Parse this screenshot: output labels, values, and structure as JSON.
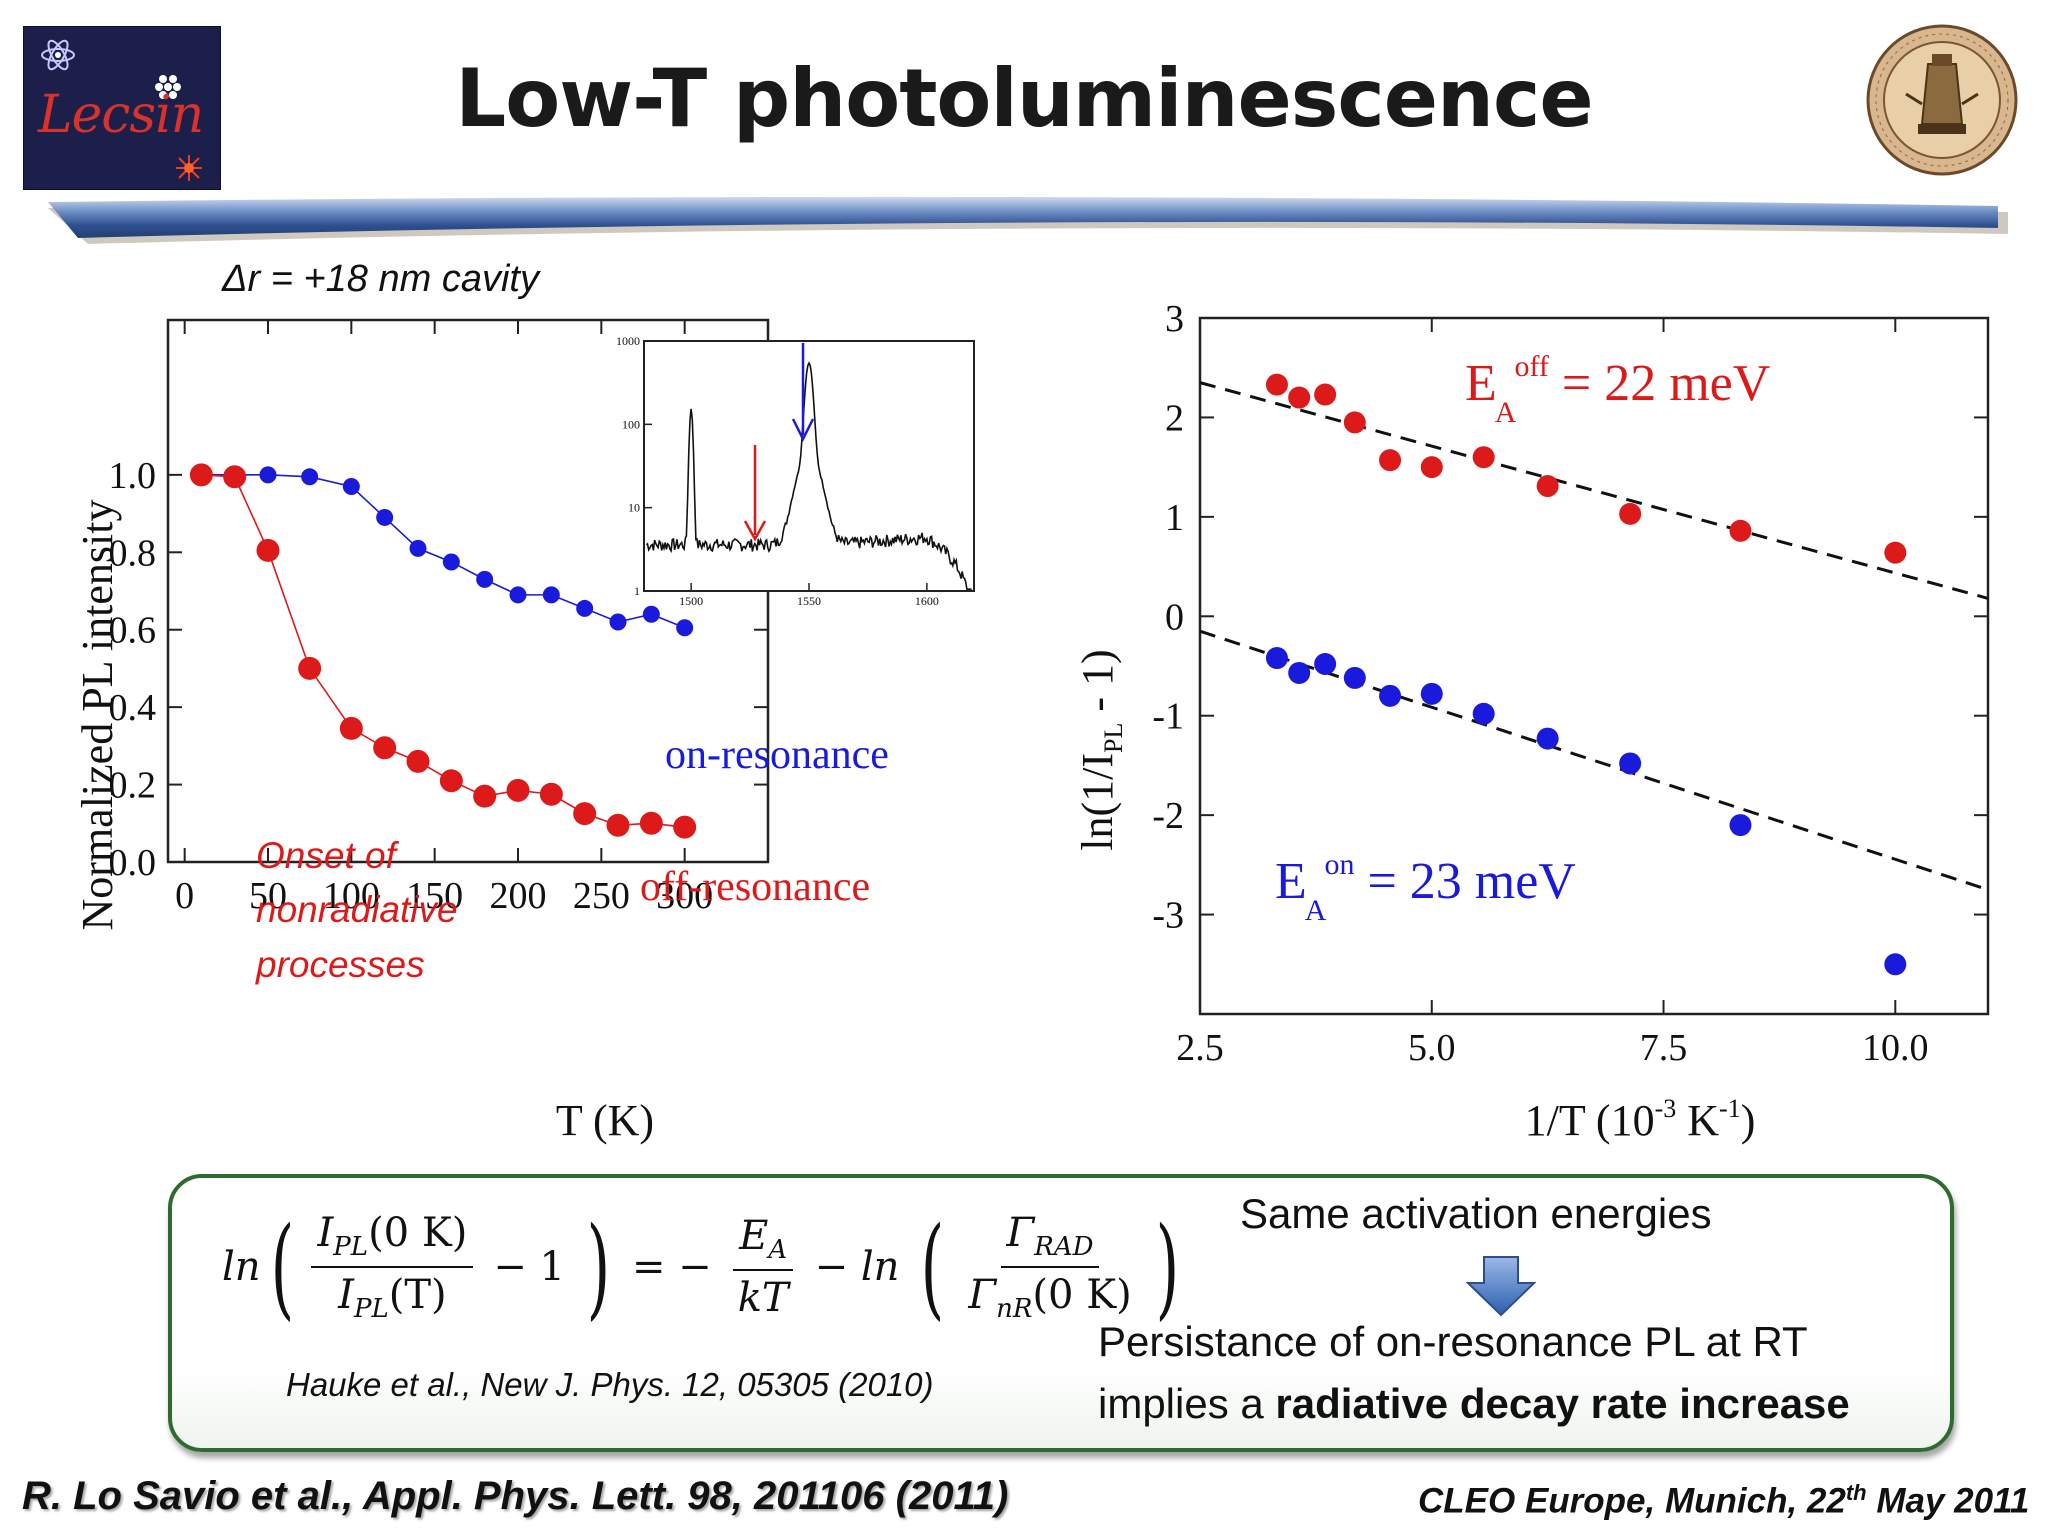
{
  "header": {
    "title": "Low-T photoluminescence",
    "logo_left_text": "Lecsin",
    "logo_right": "university-seal"
  },
  "subtitle": "Δr = +18 nm cavity",
  "left_chart": {
    "chart_data": {
      "type": "line",
      "xlabel": "T (K)",
      "ylabel": "Normalized PL intensity",
      "xlim": [
        -10,
        350
      ],
      "ylim": [
        0.0,
        1.4
      ],
      "xticks": [
        0,
        50,
        100,
        150,
        200,
        250,
        300
      ],
      "yticks": [
        0.0,
        0.2,
        0.4,
        0.6,
        0.8,
        1.0
      ],
      "xtick_labels": [
        "0",
        "50",
        "100",
        "150",
        "200",
        "250",
        "300"
      ],
      "ytick_labels": [
        "0.0",
        "0.2",
        "0.4",
        "0.6",
        "0.8",
        "1.0"
      ],
      "series": [
        {
          "name": "on-resonance",
          "color": "#1a1adc",
          "x": [
            10,
            30,
            50,
            75,
            100,
            120,
            140,
            160,
            180,
            200,
            220,
            240,
            260,
            280,
            300
          ],
          "y": [
            1.0,
            1.0,
            1.0,
            0.995,
            0.97,
            0.89,
            0.81,
            0.775,
            0.73,
            0.69,
            0.69,
            0.655,
            0.62,
            0.64,
            0.605
          ]
        },
        {
          "name": "off-resonance",
          "color": "#dd1a1a",
          "x": [
            10,
            30,
            50,
            75,
            100,
            120,
            140,
            160,
            180,
            200,
            220,
            240,
            260,
            280,
            300
          ],
          "y": [
            1.0,
            0.995,
            0.805,
            0.5,
            0.345,
            0.295,
            0.26,
            0.21,
            0.17,
            0.185,
            0.175,
            0.125,
            0.095,
            0.1,
            0.09
          ]
        }
      ],
      "annotations": [
        "Onset of",
        "nonradiative",
        "processes"
      ],
      "grid": false
    },
    "inset": {
      "chart_data": {
        "type": "line",
        "y_scale": "log",
        "xlim": [
          1480,
          1620
        ],
        "ylim": [
          1,
          1000
        ],
        "xtick_labels": [
          "1500",
          "1550",
          "1600"
        ],
        "ytick_labels": [
          "1",
          "10",
          "100",
          "1000"
        ],
        "arrow_colors": [
          "#dd1a1a",
          "#1a1adc"
        ]
      }
    }
  },
  "right_chart": {
    "chart_data": {
      "type": "scatter",
      "xlabel": "1/T (10-3 K-1)",
      "ylabel": "ln(1/IPL - 1)",
      "xlim": [
        2.5,
        11.0
      ],
      "ylim": [
        -4.0,
        3.0
      ],
      "xticks": [
        2.5,
        5.0,
        7.5,
        10.0
      ],
      "yticks": [
        -3,
        -2,
        -1,
        0,
        1,
        2,
        3
      ],
      "xtick_labels": [
        "2.5",
        "5.0",
        "7.5",
        "10.0"
      ],
      "ytick_labels": [
        "-3",
        "-2",
        "-1",
        "0",
        "1",
        "2",
        "3"
      ],
      "series": [
        {
          "name": "off",
          "color": "#dd1a1a",
          "x": [
            3.33,
            3.57,
            3.85,
            4.17,
            4.55,
            5.0,
            5.56,
            6.25,
            7.14,
            8.33,
            10.0
          ],
          "y": [
            2.33,
            2.2,
            2.23,
            1.95,
            1.57,
            1.5,
            1.6,
            1.31,
            1.03,
            0.86,
            0.64
          ]
        },
        {
          "name": "on",
          "color": "#1a1adc",
          "x": [
            3.33,
            3.57,
            3.85,
            4.17,
            4.55,
            5.0,
            5.56,
            6.25,
            7.14,
            8.33,
            10.0
          ],
          "y": [
            -0.42,
            -0.57,
            -0.48,
            -0.62,
            -0.8,
            -0.78,
            -0.98,
            -1.23,
            -1.48,
            -2.1,
            -3.5
          ]
        }
      ],
      "fit_lines": [
        {
          "x": [
            2.5,
            11.0
          ],
          "y": [
            2.35,
            0.18
          ]
        },
        {
          "x": [
            2.5,
            11.0
          ],
          "y": [
            -0.15,
            -2.75
          ]
        }
      ],
      "labels": {
        "off_E": "E",
        "off_sub": "A",
        "off_sup": "off",
        "off_value": " = 22 meV",
        "on_E": "E",
        "on_sub": "A",
        "on_sup": "on",
        "on_value": " = 23 meV"
      },
      "grid": false
    }
  },
  "formula_box": {
    "ln": "ln",
    "num1": "I",
    "num1_sub": "PL",
    "num1_arg": "(0 K)",
    "den1": "I",
    "den1_sub": "PL",
    "den1_arg": "(T)",
    "minus_one": "− 1",
    "equals": "= −",
    "ea": "E",
    "ea_sub": "A",
    "kt": "kT",
    "minus_ln": "− ln",
    "num2": "Γ",
    "num2_sub": "RAD",
    "den2": "Γ",
    "den2_sub": "nR",
    "den2_arg": "(0 K)",
    "citation": "Hauke et al., New J. Phys. 12, 05305 (2010)",
    "same_energies": "Same activation energies",
    "conclusion_line1": "Persistance of on-resonance PL at RT",
    "conclusion_line2_plain": "implies a ",
    "conclusion_line2_bold": "radiative decay rate increase"
  },
  "footer": {
    "left": "R. Lo Savio et al., Appl. Phys. Lett. 98, 201106 (2011)",
    "right_pre": "CLEO Europe, Munich, 22",
    "right_sup": "th",
    "right_post": " May 2011"
  }
}
